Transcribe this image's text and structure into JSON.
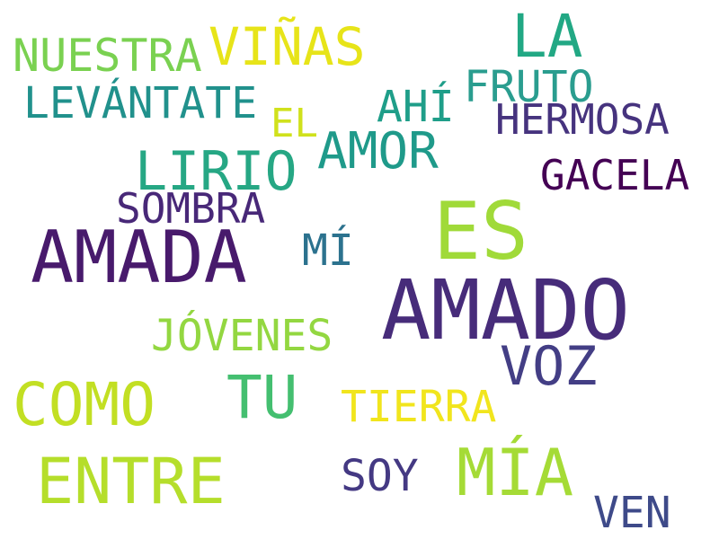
{
  "words": {
    "nuestra": {
      "text": "NUESTRA",
      "color": "#7ad151"
    },
    "vinas": {
      "text": "VIÑAS",
      "color": "#e7e419"
    },
    "la": {
      "text": "LA",
      "color": "#22a884"
    },
    "levantate": {
      "text": "LEVÁNTATE",
      "color": "#21918c"
    },
    "fruto": {
      "text": "FRUTO",
      "color": "#2a9d8f"
    },
    "el": {
      "text": "EL",
      "color": "#d0e11c"
    },
    "ahi": {
      "text": "AHÍ",
      "color": "#1f9e89"
    },
    "hermosa": {
      "text": "HERMOSA",
      "color": "#46337e"
    },
    "amor": {
      "text": "AMOR",
      "color": "#1f9a8a"
    },
    "lirio": {
      "text": "LIRIO",
      "color": "#26a784"
    },
    "gacela": {
      "text": "GACELA",
      "color": "#440154"
    },
    "sombra": {
      "text": "SOMBRA",
      "color": "#482878"
    },
    "es": {
      "text": "ES",
      "color": "#a0da39"
    },
    "amada": {
      "text": "AMADA",
      "color": "#481a6c"
    },
    "mi": {
      "text": "MÍ",
      "color": "#2c728e"
    },
    "amado": {
      "text": "AMADO",
      "color": "#472c7a"
    },
    "jovenes": {
      "text": "JÓVENES",
      "color": "#93d741"
    },
    "voz": {
      "text": "VOZ",
      "color": "#433e85"
    },
    "como": {
      "text": "COMO",
      "color": "#c2df23"
    },
    "tu": {
      "text": "TU",
      "color": "#44bf70"
    },
    "tierra": {
      "text": "TIERRA",
      "color": "#f1e51d"
    },
    "entre": {
      "text": "ENTRE",
      "color": "#b5de2b"
    },
    "soy": {
      "text": "SOY",
      "color": "#443983"
    },
    "mia": {
      "text": "MÍA",
      "color": "#a5db36"
    },
    "ven": {
      "text": "VEN",
      "color": "#3e4a89"
    }
  }
}
